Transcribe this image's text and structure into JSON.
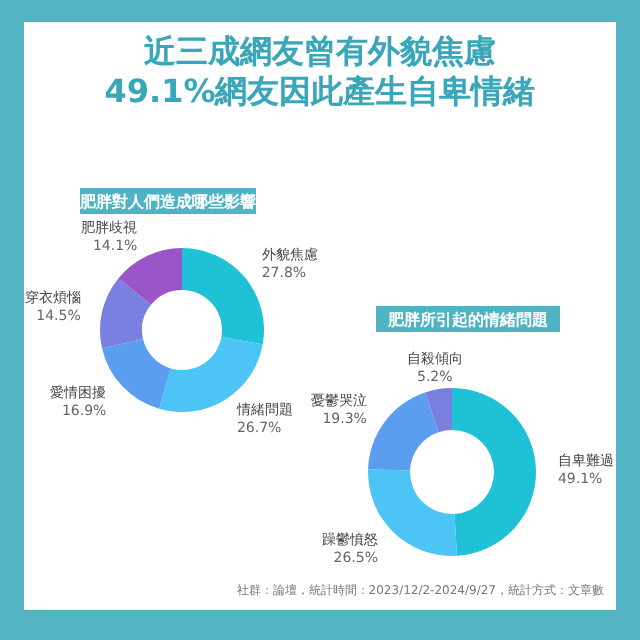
{
  "chart_data": [
    {
      "type": "donut",
      "title": "近三成網友曾有外貌焦慮\n49.1%網友因此產生自卑情緒",
      "subtitle": "肥胖對人們造成哪些影響",
      "categories": [
        "外貌焦慮",
        "情緒問題",
        "愛情困擾",
        "穿衣煩惱",
        "肥胖歧視"
      ],
      "values": [
        27.8,
        26.7,
        16.9,
        14.5,
        14.1
      ],
      "value_labels": [
        "27.8%",
        "26.7%",
        "16.9%",
        "14.5%",
        "14.1%"
      ],
      "colors": [
        "#1fc1d6",
        "#4cc4f5",
        "#5b9ef0",
        "#7a80e0",
        "#9a56c8"
      ]
    },
    {
      "type": "donut",
      "title": "肥胖所引起的情緒問題",
      "categories": [
        "自卑難過",
        "躁鬱憤怒",
        "憂鬱哭泣",
        "自殺傾向"
      ],
      "values": [
        49.1,
        26.5,
        19.3,
        5.2
      ],
      "value_labels": [
        "49.1%",
        "26.5%",
        "19.3%",
        "5.2%"
      ],
      "colors": [
        "#1fc1d6",
        "#4cc4f5",
        "#5b9ef0",
        "#7a80e0"
      ],
      "annotations": [
        "社群：論壇，統計時間：2023/12/2-2024/9/27，統計方式：文章數"
      ]
    }
  ]
}
